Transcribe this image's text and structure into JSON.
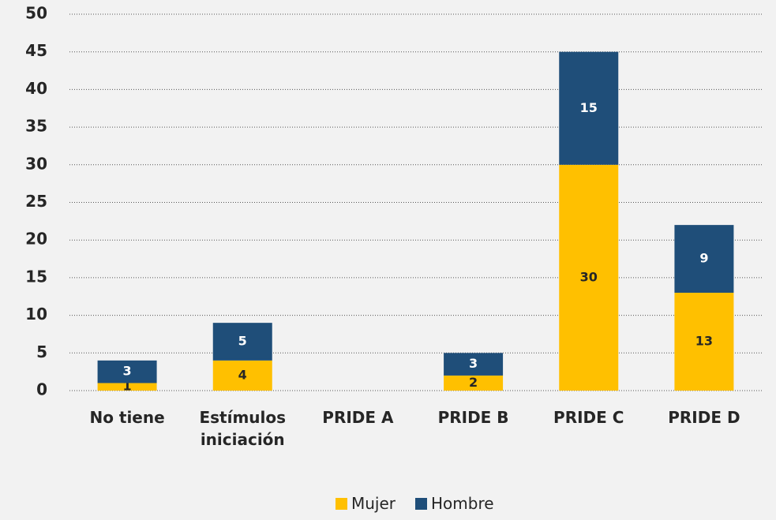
{
  "chart_data": {
    "type": "stacked_bar",
    "categories": [
      "No tiene",
      "Estímulos iniciación",
      "PRIDE A",
      "PRIDE B",
      "PRIDE C",
      "PRIDE D"
    ],
    "series": [
      {
        "name": "Mujer",
        "color": "#ffc000",
        "values": [
          1,
          4,
          0,
          2,
          30,
          13
        ]
      },
      {
        "name": "Hombre",
        "color": "#1f4e79",
        "values": [
          3,
          5,
          0,
          3,
          15,
          9
        ]
      }
    ],
    "ylim": [
      0,
      50
    ],
    "yticks": [
      0,
      5,
      10,
      15,
      20,
      25,
      30,
      35,
      40,
      45,
      50
    ],
    "grid": true,
    "legend": "bottom"
  }
}
